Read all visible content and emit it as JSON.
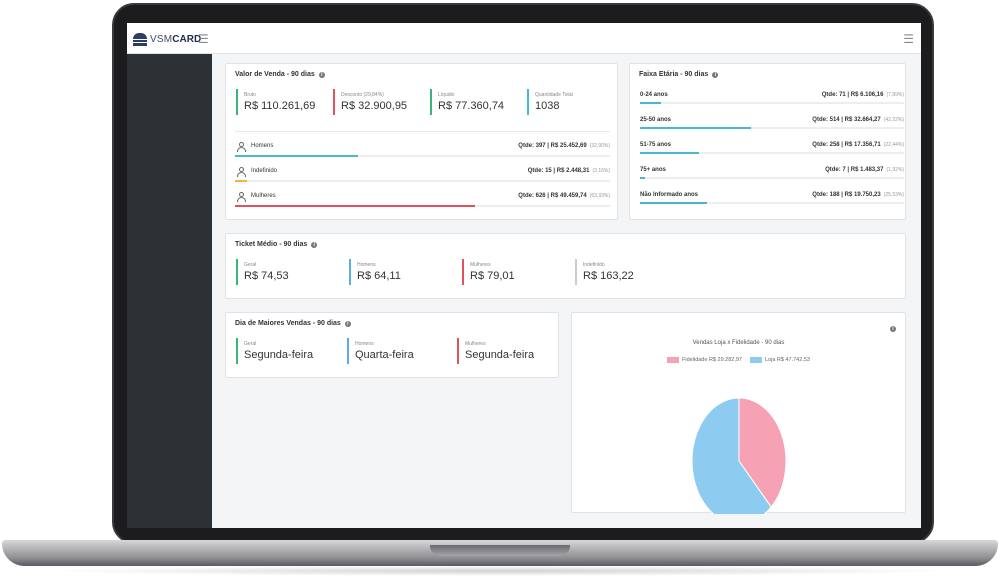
{
  "brand": {
    "part1": "VSM",
    "part2": "CARD"
  },
  "colors": {
    "green": "#3cb37a",
    "red": "#e2525c",
    "teal": "#4bb7c9",
    "blue": "#5dade2",
    "pink": "#f7a1b5",
    "lightblue": "#8ecbf0"
  },
  "valor_venda": {
    "title": "Valor de Venda - 90 dias",
    "stats": [
      {
        "label": "Bruto",
        "value": "R$ 110.261,69"
      },
      {
        "label": "Desconto (29,84%)",
        "value": "R$ 32.900,95"
      },
      {
        "label": "Líquido",
        "value": "R$ 77.360,74"
      },
      {
        "label": "Quantidade Total",
        "value": "1038"
      }
    ],
    "genders": [
      {
        "name": "Homens",
        "qtde": "Qtde: 397 |",
        "valor": "R$ 25.452,69",
        "pct": "(32,90%)",
        "fill": 0.329
      },
      {
        "name": "Indefinido",
        "qtde": "Qtde: 15 |",
        "valor": "R$ 2.448,31",
        "pct": "(3,16%)",
        "fill": 0.0316
      },
      {
        "name": "Mulheres",
        "qtde": "Qtde: 626 |",
        "valor": "R$ 49.459,74",
        "pct": "(63,93%)",
        "fill": 0.6393
      }
    ]
  },
  "faixa_etaria": {
    "title": "Faixa Etária - 90 dias",
    "rows": [
      {
        "name": "0-24 anos",
        "qtde": "Qtde: 71 |",
        "valor": "R$ 6.106,16",
        "pct": "(7,89%)",
        "fill": 0.0789
      },
      {
        "name": "25-50 anos",
        "qtde": "Qtde: 514 |",
        "valor": "R$ 32.664,27",
        "pct": "(42,22%)",
        "fill": 0.4222
      },
      {
        "name": "51-75 anos",
        "qtde": "Qtde: 258 |",
        "valor": "R$ 17.356,71",
        "pct": "(22,44%)",
        "fill": 0.2244
      },
      {
        "name": "75+ anos",
        "qtde": "Qtde: 7 |",
        "valor": "R$ 1.483,37",
        "pct": "(1,92%)",
        "fill": 0.0192
      },
      {
        "name": "Não Informado anos",
        "qtde": "Qtde: 188 |",
        "valor": "R$ 19.750,23",
        "pct": "(25,53%)",
        "fill": 0.2553
      }
    ]
  },
  "ticket_medio": {
    "title": "Ticket Médio - 90 dias",
    "stats": [
      {
        "label": "Geral",
        "value": "R$ 74,53"
      },
      {
        "label": "Homens",
        "value": "R$ 64,11"
      },
      {
        "label": "Mulheres",
        "value": "R$ 79,01"
      },
      {
        "label": "Indefinido",
        "value": "R$ 163,22"
      }
    ]
  },
  "dia_maiores_vendas": {
    "title": "Dia de Maiores Vendas - 90 dias",
    "stats": [
      {
        "label": "Geral",
        "value": "Segunda-feira"
      },
      {
        "label": "Homens",
        "value": "Quarta-feira"
      },
      {
        "label": "Mulheres",
        "value": "Segunda-feira"
      }
    ]
  },
  "chart_data": {
    "type": "pie",
    "title": "Vendas Loja x Fidelidade - 90 dias",
    "legend_position": "top",
    "slices": [
      {
        "name": "Fidelidade R$ 29.282,97",
        "value": 29282.97,
        "color": "#f7a1b5"
      },
      {
        "name": "Loja R$ 47.742,53",
        "value": 47742.53,
        "color": "#8ecbf0"
      }
    ]
  }
}
